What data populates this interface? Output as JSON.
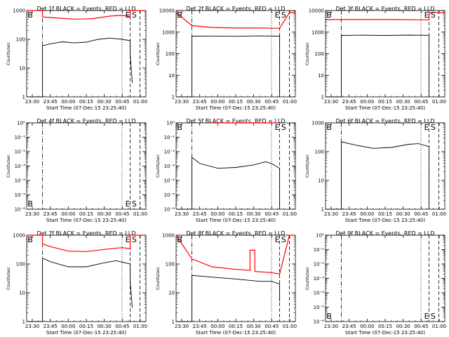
{
  "chart_data": [
    {
      "type": "line",
      "title": "Det 1f BLACK = Events, RED = LLD",
      "xlabel": "Start Time (07-Dec-15 23:25:40)",
      "ylabel": "Counts/sec",
      "yscale": "log",
      "yticks": [
        "1",
        "10",
        "100",
        "1000"
      ],
      "xticks": [
        "23:30",
        "23:45",
        "00:00",
        "00:15",
        "00:30",
        "00:45",
        "01:00"
      ],
      "markers": [
        {
          "label": "B",
          "x": 0.03
        },
        {
          "label": "E",
          "x": 0.848
        },
        {
          "label": "S",
          "x": 0.902
        }
      ],
      "series": [
        {
          "color": "#000000",
          "points": [
            [
              0.0,
              1
            ],
            [
              0.133,
              1
            ],
            [
              0.133,
              60
            ],
            [
              0.2,
              70
            ],
            [
              0.3,
              82
            ],
            [
              0.4,
              75
            ],
            [
              0.5,
              80
            ],
            [
              0.6,
              100
            ],
            [
              0.7,
              110
            ],
            [
              0.8,
              100
            ],
            [
              0.868,
              90
            ],
            [
              0.868,
              30
            ],
            [
              0.886,
              3
            ]
          ]
        },
        {
          "color": "#ff0000",
          "points": [
            [
              0.0,
              1000
            ],
            [
              0.133,
              1000
            ],
            [
              0.133,
              600
            ],
            [
              0.25,
              550
            ],
            [
              0.4,
              500
            ],
            [
              0.55,
              520
            ],
            [
              0.7,
              640
            ],
            [
              0.8,
              680
            ],
            [
              0.868,
              620
            ],
            [
              0.868,
              1000
            ],
            [
              1.0,
              1000
            ]
          ]
        }
      ]
    },
    {
      "type": "line",
      "title": "Det 2f BLACK = Events, RED = LLD",
      "xlabel": "Start Time (07-Dec-15 23:25:40)",
      "ylabel": "Counts/sec",
      "yscale": "log",
      "yticks": [
        "1",
        "10",
        "100",
        "1000",
        "10000"
      ],
      "xticks": [
        "23:30",
        "23:45",
        "00:00",
        "00:15",
        "00:30",
        "00:45",
        "01:00"
      ],
      "markers": [
        {
          "label": "B",
          "x": 0.03
        },
        {
          "label": "E",
          "x": 0.848
        },
        {
          "label": "S",
          "x": 0.902
        }
      ],
      "series": [
        {
          "color": "#000000",
          "points": [
            [
              0.0,
              1
            ],
            [
              0.133,
              1
            ],
            [
              0.133,
              650
            ],
            [
              0.3,
              660
            ],
            [
              0.5,
              640
            ],
            [
              0.7,
              670
            ],
            [
              0.868,
              650
            ],
            [
              0.868,
              1
            ]
          ]
        },
        {
          "color": "#ff0000",
          "points": [
            [
              0.0,
              8000
            ],
            [
              0.133,
              2000
            ],
            [
              0.3,
              1650
            ],
            [
              0.5,
              1550
            ],
            [
              0.7,
              1550
            ],
            [
              0.868,
              1500
            ],
            [
              0.95,
              8000
            ],
            [
              1.0,
              8000
            ]
          ]
        }
      ]
    },
    {
      "type": "line",
      "title": "Det 3f BLACK = Events, RED = LLD",
      "xlabel": "Start Time (07-Dec-15 23:25:40)",
      "ylabel": "Counts/sec",
      "yscale": "log",
      "yticks": [
        "1",
        "10",
        "100",
        "1000",
        "10000"
      ],
      "xticks": [
        "23:30",
        "23:45",
        "00:00",
        "00:15",
        "00:30",
        "00:45",
        "01:00"
      ],
      "markers": [
        {
          "label": "B",
          "x": 0.03
        },
        {
          "label": "E",
          "x": 0.848
        },
        {
          "label": "S",
          "x": 0.902
        }
      ],
      "series": [
        {
          "color": "#000000",
          "points": [
            [
              0.0,
              1
            ],
            [
              0.133,
              1
            ],
            [
              0.133,
              700
            ],
            [
              0.3,
              720
            ],
            [
              0.5,
              700
            ],
            [
              0.7,
              730
            ],
            [
              0.868,
              710
            ],
            [
              0.868,
              1
            ]
          ]
        },
        {
          "color": "#ff0000",
          "points": [
            [
              0.0,
              3800
            ],
            [
              0.3,
              3800
            ],
            [
              0.6,
              3800
            ],
            [
              0.868,
              3700
            ],
            [
              0.868,
              8000
            ],
            [
              1.0,
              8000
            ]
          ]
        }
      ]
    },
    {
      "type": "line",
      "title": "Det 4f BLACK = Events, RED = LLD",
      "xlabel": "Start Time (07-Dec-15 23:25:40)",
      "ylabel": "Counts/sec",
      "yscale": "log",
      "yticks": [
        "10⁻⁶",
        "10⁻⁵",
        "10⁻⁴",
        "10⁻³",
        "10⁻²",
        "10⁻¹",
        "10⁰"
      ],
      "xticks": [
        "23:30",
        "23:45",
        "00:00",
        "00:15",
        "00:30",
        "00:45",
        "01:00"
      ],
      "markers": [
        {
          "label": "B",
          "x": 0.03
        },
        {
          "label": "E",
          "x": 0.848
        },
        {
          "label": "S",
          "x": 0.902
        }
      ],
      "series": []
    },
    {
      "type": "line",
      "title": "Det 5f BLACK = Events, RED = LLD",
      "xlabel": "Start Time (07-Dec-15 23:25:40)",
      "ylabel": "Counts/sec",
      "yscale": "log",
      "yticks": [
        "10⁻⁶",
        "10⁻⁵",
        "10⁻⁴",
        "10⁻³",
        "10⁻²",
        "10⁻¹",
        "10⁰"
      ],
      "xticks": [
        "23:30",
        "23:45",
        "00:00",
        "00:15",
        "00:30",
        "00:45",
        "01:00"
      ],
      "markers": [
        {
          "label": "B",
          "x": 0.03
        },
        {
          "label": "E",
          "x": 0.848
        },
        {
          "label": "S",
          "x": 0.902
        }
      ],
      "series": [
        {
          "color": "#000000",
          "points": [
            [
              0.0,
              1e-06
            ],
            [
              0.133,
              1e-06
            ],
            [
              0.133,
              0.004
            ],
            [
              0.2,
              0.0015
            ],
            [
              0.35,
              0.0007
            ],
            [
              0.5,
              0.0008
            ],
            [
              0.65,
              0.0012
            ],
            [
              0.75,
              0.002
            ],
            [
              0.8,
              0.0015
            ],
            [
              0.868,
              0.0007
            ],
            [
              0.868,
              1e-06
            ]
          ]
        },
        {
          "color": "#ff0000",
          "points": [
            [
              0.3,
              1
            ],
            [
              0.85,
              1
            ]
          ]
        }
      ]
    },
    {
      "type": "line",
      "title": "Det 6f BLACK = Events, RED = LLD",
      "xlabel": "Start Time (07-Dec-15 23:25:40)",
      "ylabel": "Counts/sec",
      "yscale": "log",
      "yticks": [
        "1",
        "10",
        "100",
        "1000"
      ],
      "xticks": [
        "23:30",
        "23:45",
        "00:00",
        "00:15",
        "00:30",
        "00:45",
        "01:00"
      ],
      "markers": [
        {
          "label": "B",
          "x": 0.03
        },
        {
          "label": "E",
          "x": 0.848
        },
        {
          "label": "S",
          "x": 0.902
        }
      ],
      "series": [
        {
          "color": "#000000",
          "points": [
            [
              0.0,
              1
            ],
            [
              0.133,
              1
            ],
            [
              0.133,
              220
            ],
            [
              0.25,
              170
            ],
            [
              0.4,
              130
            ],
            [
              0.55,
              140
            ],
            [
              0.7,
              180
            ],
            [
              0.78,
              190
            ],
            [
              0.868,
              150
            ],
            [
              0.868,
              1
            ]
          ]
        }
      ]
    },
    {
      "type": "line",
      "title": "Det 7f BLACK = Events, RED = LLD",
      "xlabel": "Start Time (07-Dec-15 23:25:40)",
      "ylabel": "Counts/sec",
      "yscale": "log",
      "yticks": [
        "1",
        "10",
        "100",
        "1000"
      ],
      "xticks": [
        "23:30",
        "23:45",
        "00:00",
        "00:15",
        "00:30",
        "00:45",
        "01:00"
      ],
      "markers": [
        {
          "label": "B",
          "x": 0.03
        },
        {
          "label": "E",
          "x": 0.848
        },
        {
          "label": "S",
          "x": 0.902
        }
      ],
      "series": [
        {
          "color": "#000000",
          "points": [
            [
              0.0,
              1
            ],
            [
              0.133,
              1
            ],
            [
              0.133,
              160
            ],
            [
              0.2,
              120
            ],
            [
              0.35,
              80
            ],
            [
              0.5,
              80
            ],
            [
              0.65,
              110
            ],
            [
              0.75,
              130
            ],
            [
              0.868,
              100
            ],
            [
              0.868,
              25
            ],
            [
              0.886,
              3
            ]
          ]
        },
        {
          "color": "#ff0000",
          "points": [
            [
              0.0,
              1000
            ],
            [
              0.133,
              1000
            ],
            [
              0.133,
              500
            ],
            [
              0.2,
              400
            ],
            [
              0.35,
              280
            ],
            [
              0.5,
              270
            ],
            [
              0.65,
              320
            ],
            [
              0.8,
              370
            ],
            [
              0.868,
              340
            ],
            [
              0.868,
              1000
            ],
            [
              1.0,
              1000
            ]
          ]
        }
      ]
    },
    {
      "type": "line",
      "title": "Det 8f BLACK = Events, RED = LLD",
      "xlabel": "Start Time (07-Dec-15 23:25:40)",
      "ylabel": "Counts/sec",
      "yscale": "log",
      "yticks": [
        "1",
        "10",
        "100",
        "1000"
      ],
      "xticks": [
        "23:30",
        "23:45",
        "00:00",
        "00:15",
        "00:30",
        "00:45",
        "01:00"
      ],
      "markers": [
        {
          "label": "B",
          "x": 0.03
        },
        {
          "label": "E",
          "x": 0.848
        },
        {
          "label": "S",
          "x": 0.902
        }
      ],
      "series": [
        {
          "color": "#000000",
          "points": [
            [
              0.0,
              1
            ],
            [
              0.133,
              1
            ],
            [
              0.133,
              40
            ],
            [
              0.3,
              35
            ],
            [
              0.5,
              30
            ],
            [
              0.7,
              25
            ],
            [
              0.8,
              25
            ],
            [
              0.868,
              20
            ],
            [
              0.868,
              5
            ]
          ]
        },
        {
          "color": "#ff0000",
          "points": [
            [
              0.0,
              1000
            ],
            [
              0.133,
              150
            ],
            [
              0.3,
              80
            ],
            [
              0.5,
              65
            ],
            [
              0.62,
              60
            ],
            [
              0.62,
              300
            ],
            [
              0.66,
              300
            ],
            [
              0.66,
              55
            ],
            [
              0.8,
              50
            ],
            [
              0.868,
              45
            ],
            [
              0.95,
              1000
            ],
            [
              1.0,
              1000
            ]
          ]
        }
      ]
    },
    {
      "type": "line",
      "title": "Det 9f BLACK = Events, RED = LLD",
      "xlabel": "Start Time (07-Dec-15 23:25:40)",
      "ylabel": "Counts/sec",
      "yscale": "log",
      "yticks": [
        "10⁻⁶",
        "10⁻⁵",
        "10⁻⁴",
        "10⁻³",
        "10⁻²",
        "10⁻¹",
        "10⁰"
      ],
      "xticks": [
        "23:30",
        "23:45",
        "00:00",
        "00:15",
        "00:30",
        "00:45",
        "01:00"
      ],
      "markers": [
        {
          "label": "B",
          "x": 0.03
        },
        {
          "label": "E",
          "x": 0.848
        },
        {
          "label": "S",
          "x": 0.902
        }
      ],
      "series": []
    }
  ]
}
